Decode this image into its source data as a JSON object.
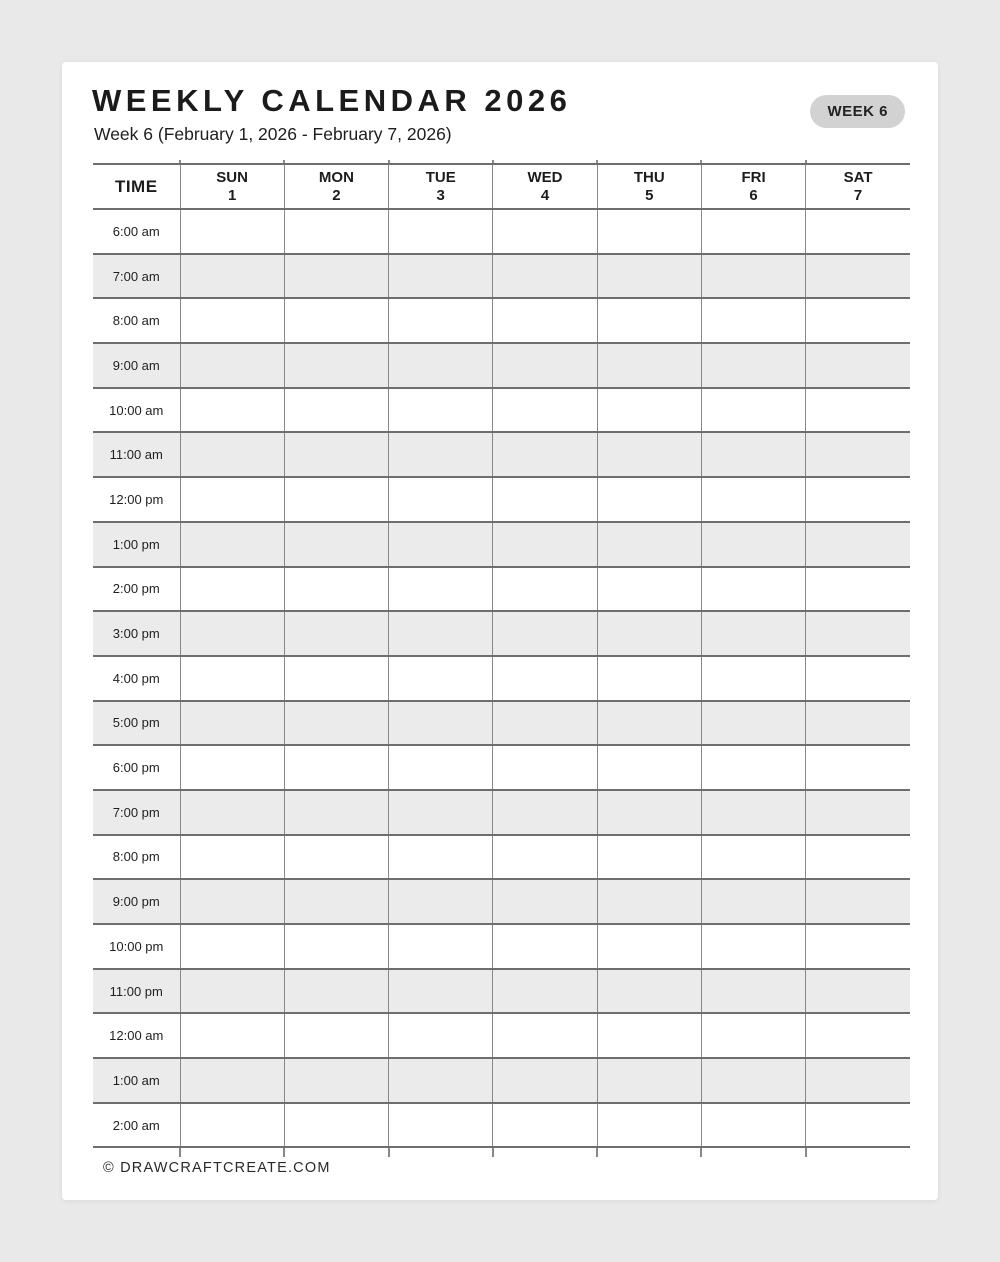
{
  "header": {
    "title": "WEEKLY CALENDAR 2026",
    "subtitle": "Week 6 (February 1, 2026 - February 7, 2026)",
    "badge": "WEEK 6"
  },
  "table": {
    "time_header": "TIME",
    "days": [
      {
        "name": "SUN",
        "date": "1"
      },
      {
        "name": "MON",
        "date": "2"
      },
      {
        "name": "TUE",
        "date": "3"
      },
      {
        "name": "WED",
        "date": "4"
      },
      {
        "name": "THU",
        "date": "5"
      },
      {
        "name": "FRI",
        "date": "6"
      },
      {
        "name": "SAT",
        "date": "7"
      }
    ],
    "times": [
      "6:00 am",
      "7:00 am",
      "8:00 am",
      "9:00 am",
      "10:00 am",
      "11:00 am",
      "12:00 pm",
      "1:00 pm",
      "2:00 pm",
      "3:00 pm",
      "4:00 pm",
      "5:00 pm",
      "6:00 pm",
      "7:00 pm",
      "8:00 pm",
      "9:00 pm",
      "10:00 pm",
      "11:00 pm",
      "12:00 am",
      "1:00 am",
      "2:00 am"
    ]
  },
  "footer": {
    "credit": "© DRAWCRAFTCREATE.COM"
  },
  "colors": {
    "page_bg": "#e9e9e9",
    "card_bg": "#ffffff",
    "row_alt_bg": "#ebebeb",
    "grid_line_h": "#6e6e6e",
    "grid_line_v": "#888888",
    "badge_bg": "#d2d2d2",
    "text": "#1c1c1c"
  }
}
